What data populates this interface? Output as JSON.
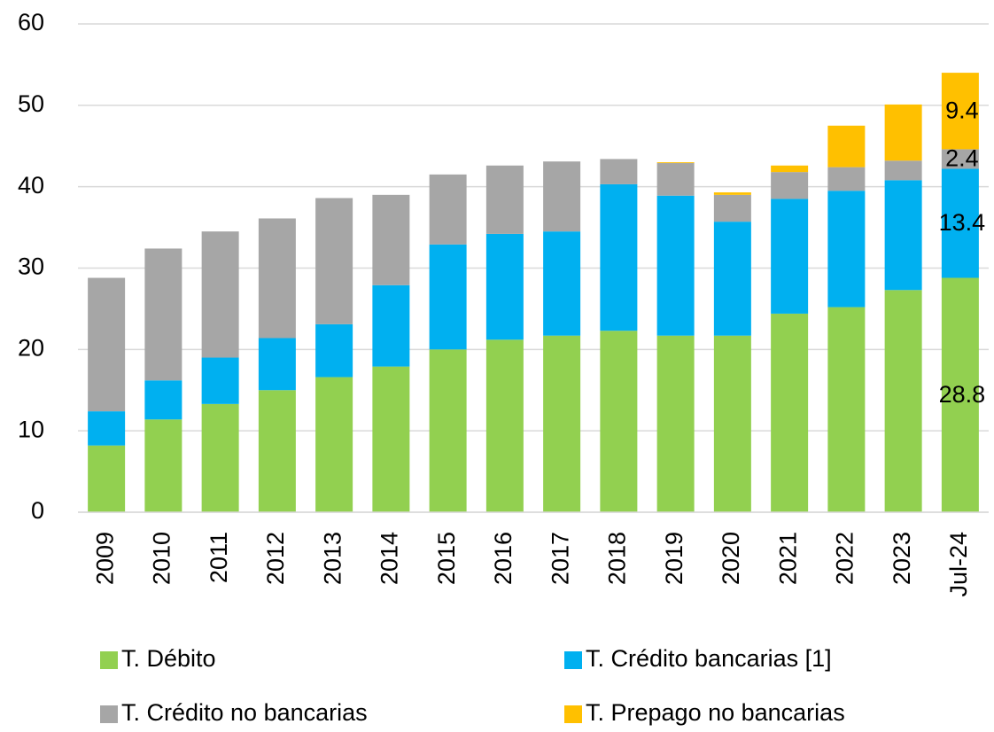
{
  "chart_data": {
    "type": "stacked_bar",
    "categories": [
      "2009",
      "2010",
      "2011",
      "2012",
      "2013",
      "2014",
      "2015",
      "2016",
      "2017",
      "2018",
      "2019",
      "2020",
      "2021",
      "2022",
      "2023",
      "Jul-24"
    ],
    "series": [
      {
        "name": "T. Débito",
        "color": "#92d050",
        "values": [
          8.2,
          11.4,
          13.3,
          15.0,
          16.6,
          17.9,
          20.0,
          21.2,
          21.7,
          22.3,
          21.7,
          21.7,
          24.4,
          25.2,
          27.3,
          28.8
        ]
      },
      {
        "name": "T. Crédito bancarias [1]",
        "color": "#00b0f0",
        "values": [
          4.2,
          4.8,
          5.7,
          6.4,
          6.5,
          10.0,
          12.9,
          13.0,
          12.8,
          18.0,
          17.2,
          14.0,
          14.1,
          14.3,
          13.5,
          13.4
        ]
      },
      {
        "name": "T. Crédito no bancarias",
        "color": "#a6a6a6",
        "values": [
          16.4,
          16.2,
          15.5,
          14.7,
          15.5,
          11.1,
          8.6,
          8.4,
          8.6,
          3.1,
          4.0,
          3.3,
          3.3,
          2.9,
          2.4,
          2.4
        ]
      },
      {
        "name": "T. Prepago no bancarias",
        "color": "#ffc000",
        "values": [
          0,
          0,
          0,
          0,
          0,
          0,
          0,
          0,
          0,
          0,
          0.1,
          0.3,
          0.8,
          5.1,
          6.9,
          9.4
        ]
      }
    ],
    "ylim": [
      0,
      60
    ],
    "yticks": [
      0,
      10,
      20,
      30,
      40,
      50,
      60
    ],
    "grid": true
  }
}
